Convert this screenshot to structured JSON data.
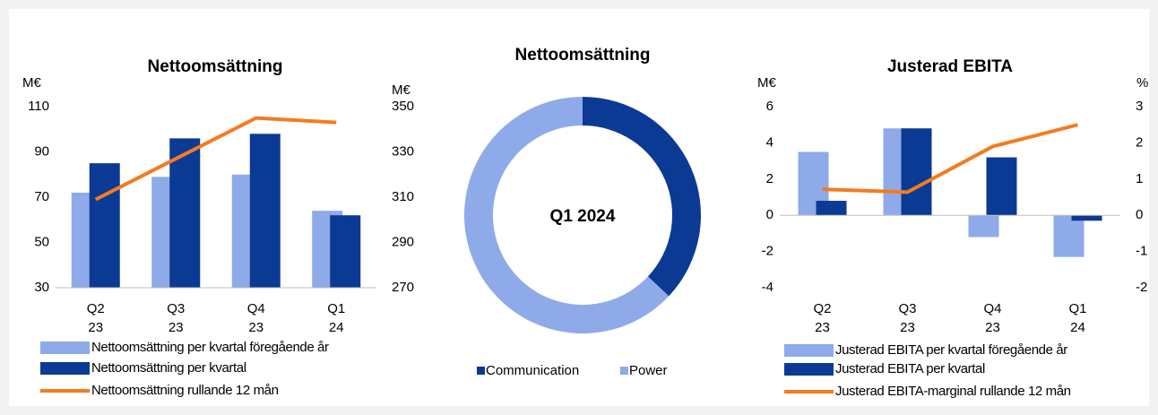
{
  "chart_data": [
    {
      "type": "combo",
      "title": "Nettoomsättning",
      "ylabel": "M€",
      "y2label": "M€",
      "categories": [
        [
          "Q2",
          "23"
        ],
        [
          "Q3",
          "23"
        ],
        [
          "Q4",
          "23"
        ],
        [
          "Q1",
          "24"
        ]
      ],
      "series": [
        {
          "name": "Nettoomsättning per kvartal föregående år",
          "color": "#8eaae8",
          "kind": "bar",
          "values": [
            72,
            79,
            80,
            64
          ]
        },
        {
          "name": "Nettoomsättning per kvartal",
          "color": "#0a3a94",
          "kind": "bar",
          "values": [
            85,
            96,
            98,
            62
          ]
        },
        {
          "name": "Nettoomsättning rullande 12 mån",
          "color": "#f47b20",
          "kind": "line",
          "axis": "y2",
          "values": [
            309,
            327,
            345,
            343
          ]
        }
      ],
      "ylim": [
        30,
        110
      ],
      "yticks": [
        30,
        50,
        70,
        90,
        110
      ],
      "y2lim": [
        270,
        350
      ],
      "y2ticks": [
        270,
        290,
        310,
        330,
        350
      ]
    },
    {
      "type": "donut",
      "title": "Nettoomsättning",
      "center_text": "Q1 2024",
      "categories": [
        "Communication",
        "Power"
      ],
      "values": [
        37,
        63
      ],
      "colors": [
        "#0a3a94",
        "#8eaae8"
      ]
    },
    {
      "type": "combo",
      "title": "Justerad EBITA",
      "ylabel": "M€",
      "y2label": "%",
      "categories": [
        [
          "Q2",
          "23"
        ],
        [
          "Q3",
          "23"
        ],
        [
          "Q4",
          "23"
        ],
        [
          "Q1",
          "24"
        ]
      ],
      "series": [
        {
          "name": "Justerad EBITA per kvartal föregående år",
          "color": "#8eaae8",
          "kind": "bar",
          "values": [
            3.5,
            4.8,
            -1.2,
            -2.3
          ]
        },
        {
          "name": "Justerad EBITA per kvartal",
          "color": "#0a3a94",
          "kind": "bar",
          "values": [
            0.8,
            4.8,
            3.2,
            -0.3
          ]
        },
        {
          "name": "Justerad EBITA-marginal rullande 12 mån",
          "color": "#f47b20",
          "kind": "line",
          "axis": "y2",
          "values": [
            0.72,
            0.64,
            1.9,
            2.5
          ]
        }
      ],
      "ylim": [
        -4,
        6
      ],
      "yticks": [
        -4,
        -2,
        0,
        2,
        4,
        6
      ],
      "y2lim": [
        -2,
        3
      ],
      "y2ticks": [
        -2,
        -1,
        0,
        1,
        2,
        3
      ]
    }
  ]
}
